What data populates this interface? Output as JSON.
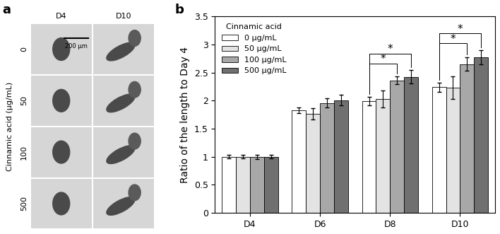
{
  "chart_data": {
    "type": "bar",
    "panel_label": "b",
    "y_label": "Ratio of the length to Day 4",
    "categories": [
      "D4",
      "D6",
      "D8",
      "D10"
    ],
    "legend_title": "Cinnamic acid",
    "legend": "upper left",
    "series": [
      {
        "name": "0 µg/mL",
        "color": "#ffffff",
        "values": [
          1.0,
          1.83,
          1.99,
          2.24
        ],
        "errors": [
          0.03,
          0.05,
          0.08,
          0.08
        ]
      },
      {
        "name": "50 µg/mL",
        "color": "#e3e3e3",
        "values": [
          1.0,
          1.76,
          2.03,
          2.23
        ],
        "errors": [
          0.03,
          0.1,
          0.15,
          0.2
        ]
      },
      {
        "name": "100 µg/mL",
        "color": "#a8a8a8",
        "values": [
          1.0,
          1.96,
          2.36,
          2.65
        ],
        "errors": [
          0.04,
          0.08,
          0.07,
          0.12
        ]
      },
      {
        "name": "500 µg/mL",
        "color": "#707070",
        "values": [
          1.0,
          2.01,
          2.42,
          2.77
        ],
        "errors": [
          0.03,
          0.1,
          0.12,
          0.13
        ]
      }
    ],
    "ylim": [
      0,
      3.5
    ],
    "yticks": [
      0,
      0.5,
      1,
      1.5,
      2,
      2.5,
      3,
      3.5
    ],
    "annotations": [
      {
        "text": "*",
        "category": "D8",
        "from": 0,
        "to": 2
      },
      {
        "text": "*",
        "category": "D8",
        "from": 0,
        "to": 3
      },
      {
        "text": "*",
        "category": "D10",
        "from": 0,
        "to": 2
      },
      {
        "text": "*",
        "category": "D10",
        "from": 0,
        "to": 3
      }
    ]
  },
  "image_panel": {
    "panel_label": "a",
    "columns": [
      "D4",
      "D10"
    ],
    "rows": [
      "0",
      "50",
      "100",
      "500"
    ],
    "row_title": "Cinnamic acid (µg/mL)",
    "scale_bar": "200 µm"
  }
}
